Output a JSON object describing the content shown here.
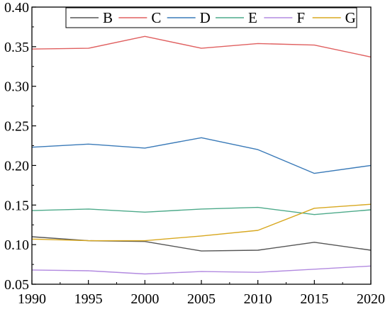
{
  "chart_data": {
    "type": "line",
    "x": [
      1990,
      1995,
      2000,
      2005,
      2010,
      2015,
      2020
    ],
    "xlim": [
      1990,
      2020
    ],
    "ylim": [
      0.05,
      0.4
    ],
    "xticks": [
      "1990",
      "1995",
      "2000",
      "2005",
      "2010",
      "2015",
      "2020"
    ],
    "yticks": [
      "0.05",
      "0.10",
      "0.15",
      "0.20",
      "0.25",
      "0.30",
      "0.35",
      "0.40"
    ],
    "grid": false,
    "legend_position": "top",
    "series": [
      {
        "name": "B",
        "color": "#555555",
        "values": [
          0.11,
          0.105,
          0.104,
          0.092,
          0.093,
          0.103,
          0.093
        ]
      },
      {
        "name": "C",
        "color": "#e06060",
        "values": [
          0.347,
          0.348,
          0.363,
          0.348,
          0.354,
          0.352,
          0.337
        ]
      },
      {
        "name": "D",
        "color": "#3a7ab8",
        "values": [
          0.223,
          0.227,
          0.222,
          0.235,
          0.22,
          0.19,
          0.2
        ]
      },
      {
        "name": "E",
        "color": "#4daa8a",
        "values": [
          0.143,
          0.145,
          0.141,
          0.145,
          0.147,
          0.138,
          0.144
        ]
      },
      {
        "name": "F",
        "color": "#b28ae0",
        "values": [
          0.068,
          0.067,
          0.063,
          0.066,
          0.065,
          0.069,
          0.073
        ]
      },
      {
        "name": "G",
        "color": "#d8a820",
        "values": [
          0.107,
          0.105,
          0.105,
          0.111,
          0.118,
          0.146,
          0.151
        ]
      }
    ]
  }
}
